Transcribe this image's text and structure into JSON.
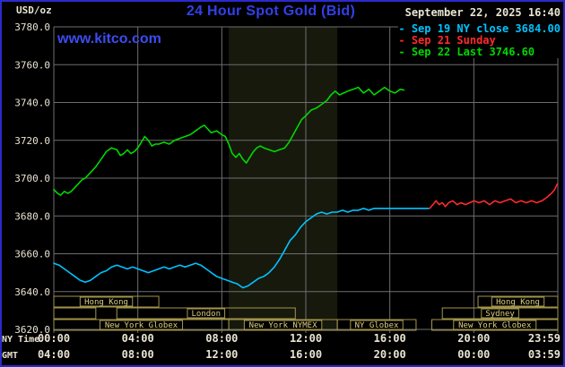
{
  "header": {
    "units_label": "USD/oz",
    "title": "24 Hour Spot Gold (Bid)",
    "datetime": "September 22, 2025 16:40",
    "watermark": "www.kitco.com",
    "legend_marker": "-",
    "legend": [
      {
        "text": "Sep 19 NY close 3684.00",
        "color": "#00c3ff"
      },
      {
        "text": "Sep 21 Sunday",
        "color": "#ff2a2a"
      },
      {
        "text": "Sep 22 Last 3746.60",
        "color": "#00d800"
      }
    ]
  },
  "chart_data": {
    "type": "line",
    "title": "24 Hour Spot Gold (Bid)",
    "ylabel": "USD/oz",
    "ylim": [
      3620,
      3780
    ],
    "yticks": [
      3780,
      3760,
      3740,
      3720,
      3700,
      3680,
      3660,
      3640,
      3620
    ],
    "x_axis": {
      "unit": "hour",
      "xlim": [
        0,
        24
      ],
      "grid_hours": [
        0,
        4,
        8,
        12,
        16,
        20,
        24
      ],
      "rows": [
        {
          "name": "NY Time",
          "labels": [
            "00:00",
            "04:00",
            "08:00",
            "12:00",
            "16:00",
            "20:00",
            "23:59"
          ]
        },
        {
          "name": "GMT",
          "labels": [
            "04:00",
            "08:00",
            "12:00",
            "16:00",
            "20:00",
            "00:00",
            "03:59"
          ]
        }
      ]
    },
    "nymex_band": {
      "start_hour": 8.33,
      "end_hour": 13.5
    },
    "series": [
      {
        "id": "sep19",
        "name": "Sep 19 NY close",
        "close": 3684.0,
        "color": "#00c3ff",
        "points": [
          [
            0,
            3655
          ],
          [
            0.25,
            3654
          ],
          [
            0.5,
            3652
          ],
          [
            0.75,
            3650
          ],
          [
            1,
            3648
          ],
          [
            1.25,
            3646
          ],
          [
            1.5,
            3645
          ],
          [
            1.75,
            3646
          ],
          [
            2,
            3648
          ],
          [
            2.25,
            3650
          ],
          [
            2.5,
            3651
          ],
          [
            2.75,
            3653
          ],
          [
            3,
            3654
          ],
          [
            3.25,
            3653
          ],
          [
            3.5,
            3652
          ],
          [
            3.75,
            3653
          ],
          [
            4,
            3652
          ],
          [
            4.25,
            3651
          ],
          [
            4.5,
            3650
          ],
          [
            4.75,
            3651
          ],
          [
            5,
            3652
          ],
          [
            5.25,
            3653
          ],
          [
            5.5,
            3652
          ],
          [
            5.75,
            3653
          ],
          [
            6,
            3654
          ],
          [
            6.25,
            3653
          ],
          [
            6.5,
            3654
          ],
          [
            6.75,
            3655
          ],
          [
            7,
            3654
          ],
          [
            7.25,
            3652
          ],
          [
            7.5,
            3650
          ],
          [
            7.75,
            3648
          ],
          [
            8,
            3647
          ],
          [
            8.25,
            3646
          ],
          [
            8.5,
            3645
          ],
          [
            8.75,
            3644
          ],
          [
            9,
            3642
          ],
          [
            9.25,
            3643
          ],
          [
            9.5,
            3645
          ],
          [
            9.75,
            3647
          ],
          [
            10,
            3648
          ],
          [
            10.25,
            3650
          ],
          [
            10.5,
            3653
          ],
          [
            10.75,
            3657
          ],
          [
            11,
            3662
          ],
          [
            11.25,
            3667
          ],
          [
            11.5,
            3670
          ],
          [
            11.75,
            3674
          ],
          [
            12,
            3677
          ],
          [
            12.25,
            3679
          ],
          [
            12.5,
            3681
          ],
          [
            12.75,
            3682
          ],
          [
            13,
            3681
          ],
          [
            13.25,
            3682
          ],
          [
            13.5,
            3682
          ],
          [
            13.75,
            3683
          ],
          [
            14,
            3682
          ],
          [
            14.25,
            3683
          ],
          [
            14.5,
            3683
          ],
          [
            14.75,
            3684
          ],
          [
            15,
            3683
          ],
          [
            15.25,
            3684
          ],
          [
            15.5,
            3684
          ],
          [
            16,
            3684
          ],
          [
            16.5,
            3684
          ],
          [
            17,
            3684
          ],
          [
            17.5,
            3684
          ],
          [
            17.85,
            3684
          ]
        ]
      },
      {
        "id": "sep21",
        "name": "Sep 21 Sunday",
        "color": "#ff2a2a",
        "points": [
          [
            17.9,
            3684
          ],
          [
            18.05,
            3686
          ],
          [
            18.2,
            3688
          ],
          [
            18.35,
            3686
          ],
          [
            18.5,
            3687
          ],
          [
            18.65,
            3685
          ],
          [
            18.8,
            3687
          ],
          [
            19,
            3688
          ],
          [
            19.2,
            3686
          ],
          [
            19.4,
            3687
          ],
          [
            19.6,
            3686
          ],
          [
            19.8,
            3687
          ],
          [
            20,
            3688
          ],
          [
            20.25,
            3687
          ],
          [
            20.5,
            3688
          ],
          [
            20.75,
            3686
          ],
          [
            21,
            3688
          ],
          [
            21.25,
            3687
          ],
          [
            21.5,
            3688
          ],
          [
            21.75,
            3689
          ],
          [
            22,
            3687
          ],
          [
            22.25,
            3688
          ],
          [
            22.5,
            3687
          ],
          [
            22.75,
            3688
          ],
          [
            23,
            3687
          ],
          [
            23.25,
            3688
          ],
          [
            23.5,
            3690
          ],
          [
            23.7,
            3692
          ],
          [
            23.85,
            3694
          ],
          [
            23.98,
            3697
          ]
        ]
      },
      {
        "id": "sep22",
        "name": "Sep 22",
        "last": 3746.6,
        "color": "#00d800",
        "points": [
          [
            0,
            3694
          ],
          [
            0.17,
            3692
          ],
          [
            0.33,
            3691
          ],
          [
            0.5,
            3693
          ],
          [
            0.67,
            3692
          ],
          [
            0.83,
            3693
          ],
          [
            1,
            3695
          ],
          [
            1.17,
            3697
          ],
          [
            1.33,
            3699
          ],
          [
            1.5,
            3700
          ],
          [
            1.75,
            3703
          ],
          [
            2,
            3706
          ],
          [
            2.25,
            3710
          ],
          [
            2.5,
            3714
          ],
          [
            2.75,
            3716
          ],
          [
            3,
            3715
          ],
          [
            3.17,
            3712
          ],
          [
            3.33,
            3713
          ],
          [
            3.5,
            3715
          ],
          [
            3.67,
            3713
          ],
          [
            3.83,
            3714
          ],
          [
            4,
            3716
          ],
          [
            4.17,
            3719
          ],
          [
            4.33,
            3722
          ],
          [
            4.5,
            3720
          ],
          [
            4.67,
            3717
          ],
          [
            4.83,
            3718
          ],
          [
            5,
            3718
          ],
          [
            5.25,
            3719
          ],
          [
            5.5,
            3718
          ],
          [
            5.75,
            3720
          ],
          [
            6,
            3721
          ],
          [
            6.25,
            3722
          ],
          [
            6.5,
            3723
          ],
          [
            6.75,
            3725
          ],
          [
            7,
            3727
          ],
          [
            7.17,
            3728
          ],
          [
            7.33,
            3726
          ],
          [
            7.5,
            3724
          ],
          [
            7.75,
            3725
          ],
          [
            8,
            3723
          ],
          [
            8.17,
            3722
          ],
          [
            8.33,
            3718
          ],
          [
            8.5,
            3713
          ],
          [
            8.67,
            3711
          ],
          [
            8.83,
            3713
          ],
          [
            9,
            3710
          ],
          [
            9.17,
            3708
          ],
          [
            9.33,
            3711
          ],
          [
            9.5,
            3714
          ],
          [
            9.67,
            3716
          ],
          [
            9.83,
            3717
          ],
          [
            10,
            3716
          ],
          [
            10.25,
            3715
          ],
          [
            10.5,
            3714
          ],
          [
            10.75,
            3715
          ],
          [
            11,
            3716
          ],
          [
            11.2,
            3719
          ],
          [
            11.4,
            3723
          ],
          [
            11.6,
            3727
          ],
          [
            11.8,
            3731
          ],
          [
            12,
            3733
          ],
          [
            12.25,
            3736
          ],
          [
            12.5,
            3737
          ],
          [
            12.75,
            3739
          ],
          [
            13,
            3741
          ],
          [
            13.2,
            3744
          ],
          [
            13.4,
            3746
          ],
          [
            13.6,
            3744
          ],
          [
            13.8,
            3745
          ],
          [
            14,
            3746
          ],
          [
            14.25,
            3747
          ],
          [
            14.5,
            3748
          ],
          [
            14.75,
            3745
          ],
          [
            15,
            3747
          ],
          [
            15.25,
            3744
          ],
          [
            15.5,
            3746
          ],
          [
            15.75,
            3748
          ],
          [
            16,
            3746
          ],
          [
            16.25,
            3745
          ],
          [
            16.5,
            3747
          ],
          [
            16.67,
            3746.6
          ]
        ]
      }
    ],
    "sessions": [
      {
        "row": 0,
        "start": 0,
        "end": 5,
        "label": "Hong Kong"
      },
      {
        "row": 0,
        "start": 20.2,
        "end": 24,
        "label": "Hong Kong"
      },
      {
        "row": 1,
        "start": 0,
        "end": 2,
        "label": ""
      },
      {
        "row": 1,
        "start": 3,
        "end": 11.5,
        "label": "London"
      },
      {
        "row": 1,
        "start": 18.5,
        "end": 24,
        "label": "Sydney"
      },
      {
        "row": 2,
        "start": 0,
        "end": 8.33,
        "label": "New York Globex"
      },
      {
        "row": 2,
        "start": 8.33,
        "end": 13.5,
        "label": "New York NYMEX"
      },
      {
        "row": 2,
        "start": 13.5,
        "end": 17.25,
        "label": "NY Globex"
      },
      {
        "row": 2,
        "start": 18,
        "end": 24,
        "label": "New York Globex"
      }
    ],
    "legend_position": "top-right",
    "grid": true,
    "colors": {
      "grid": "#6e6e6e",
      "band": "#17190d",
      "session_border": "#a2954a",
      "session_text": "#dbce80",
      "axis_text": "#e9e4d2",
      "background": "#000000",
      "frame": "#2a2acc",
      "title": "#3340e8"
    }
  }
}
